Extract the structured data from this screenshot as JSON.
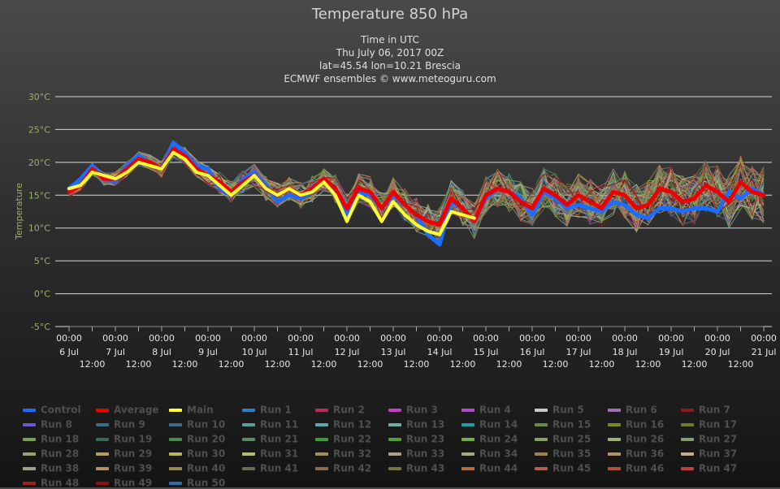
{
  "header": {
    "title": "Temperature 850 hPa",
    "line1": "Time in UTC",
    "line2": "Thu July 06, 2017 00Z",
    "line3": "lat=45.54 lon=10.21 Brescia",
    "line4": "ECMWF ensembles © www.meteoguru.com"
  },
  "colors": {
    "control": "#1a6dff",
    "average": "#ee0000",
    "main": "#ffff33",
    "grid": "#d8d8d8",
    "axis_label": "#9ab06a"
  },
  "chart_data": {
    "type": "line",
    "title": "Temperature 850 hPa",
    "ylabel": "Temperature",
    "ylim": [
      -5,
      30
    ],
    "yticks": [
      "-5°C",
      "0°C",
      "5°C",
      "10°C",
      "15°C",
      "20°C",
      "25°C",
      "30°C"
    ],
    "xlim_hours": [
      0,
      360
    ],
    "x_unit": "hours after Thu July 06, 2017 00Z",
    "x_ticks_top": [
      {
        "time": "00:00",
        "date": "6 Jul"
      },
      {
        "time": "00:00",
        "date": "7 Jul"
      },
      {
        "time": "00:00",
        "date": "8 Jul"
      },
      {
        "time": "00:00",
        "date": "9 Jul"
      },
      {
        "time": "00:00",
        "date": "10 Jul"
      },
      {
        "time": "00:00",
        "date": "11 Jul"
      },
      {
        "time": "00:00",
        "date": "12 Jul"
      },
      {
        "time": "00:00",
        "date": "13 Jul"
      },
      {
        "time": "00:00",
        "date": "14 Jul"
      },
      {
        "time": "00:00",
        "date": "15 Jul"
      },
      {
        "time": "00:00",
        "date": "16 Jul"
      },
      {
        "time": "00:00",
        "date": "17 Jul"
      },
      {
        "time": "00:00",
        "date": "18 Jul"
      },
      {
        "time": "00:00",
        "date": "19 Jul"
      },
      {
        "time": "00:00",
        "date": "20 Jul"
      },
      {
        "time": "00:00",
        "date": "21 Jul"
      }
    ],
    "x_ticks_mid": [
      "12:00",
      "12:00",
      "12:00",
      "12:00",
      "12:00",
      "12:00",
      "12:00",
      "12:00",
      "12:00",
      "12:00",
      "12:00",
      "12:00",
      "12:00",
      "12:00",
      "12:00"
    ],
    "series": [
      {
        "name": "Control",
        "x": [
          0,
          6,
          12,
          18,
          24,
          30,
          36,
          42,
          48,
          54,
          60,
          66,
          72,
          78,
          84,
          90,
          96,
          102,
          108,
          114,
          120,
          126,
          132,
          138,
          144,
          150,
          156,
          162,
          168,
          174,
          180,
          186,
          192,
          198,
          204,
          210,
          216,
          222,
          228,
          234,
          240,
          246,
          252,
          258,
          264,
          270,
          276,
          282,
          288,
          294,
          300,
          306,
          312,
          318,
          324,
          330,
          336,
          342,
          348,
          354,
          360
        ],
        "y": [
          16.0,
          17.5,
          19.5,
          17.5,
          17.0,
          19.5,
          21.0,
          20.0,
          19.0,
          23.0,
          21.5,
          19.5,
          19.0,
          16.0,
          15.0,
          17.5,
          18.5,
          16.5,
          14.0,
          15.0,
          14.5,
          15.5,
          17.5,
          15.5,
          12.0,
          15.5,
          15.0,
          13.0,
          15.0,
          13.5,
          12.0,
          9.0,
          7.5,
          14.0,
          13.0,
          11.0,
          14.5,
          16.0,
          15.5,
          14.5,
          12.0,
          15.5,
          14.5,
          13.0,
          13.5,
          13.0,
          12.5,
          14.0,
          13.5,
          12.0,
          11.5,
          13.0,
          13.0,
          12.5,
          13.0,
          13.0,
          12.5,
          15.5,
          14.5,
          16.0,
          15.0
        ]
      },
      {
        "name": "Average",
        "x": [
          0,
          6,
          12,
          18,
          24,
          30,
          36,
          42,
          48,
          54,
          60,
          66,
          72,
          78,
          84,
          90,
          96,
          102,
          108,
          114,
          120,
          126,
          132,
          138,
          144,
          150,
          156,
          162,
          168,
          174,
          180,
          186,
          192,
          198,
          204,
          210,
          216,
          222,
          228,
          234,
          240,
          246,
          252,
          258,
          264,
          270,
          276,
          282,
          288,
          294,
          300,
          306,
          312,
          318,
          324,
          330,
          336,
          342,
          348,
          354,
          360
        ],
        "y": [
          15.5,
          16.5,
          19.0,
          17.5,
          17.5,
          19.0,
          20.5,
          20.0,
          19.0,
          22.0,
          21.0,
          19.0,
          18.0,
          17.0,
          15.5,
          17.0,
          18.0,
          16.0,
          15.0,
          16.0,
          15.0,
          16.0,
          17.5,
          16.0,
          13.0,
          16.0,
          15.5,
          13.0,
          15.5,
          13.5,
          12.0,
          11.0,
          10.5,
          14.5,
          13.0,
          11.0,
          15.0,
          16.0,
          15.5,
          14.0,
          13.0,
          16.0,
          15.0,
          13.5,
          15.0,
          14.0,
          13.0,
          15.5,
          15.0,
          13.0,
          13.5,
          16.0,
          15.5,
          14.0,
          14.5,
          16.5,
          15.5,
          14.0,
          17.0,
          15.5,
          15.0
        ]
      },
      {
        "name": "Main",
        "x": [
          0,
          6,
          12,
          18,
          24,
          30,
          36,
          42,
          48,
          54,
          60,
          66,
          72,
          78,
          84,
          90,
          96,
          102,
          108,
          114,
          120,
          126,
          132,
          138,
          144,
          150,
          156,
          162,
          168,
          174,
          180,
          186,
          192,
          198,
          204,
          210,
          216,
          222,
          228,
          234,
          240,
          246,
          252,
          258,
          264,
          270,
          276,
          282,
          288,
          294,
          300,
          306,
          312,
          318,
          324,
          330,
          336,
          342,
          348,
          354,
          360
        ],
        "y": [
          16.0,
          16.5,
          18.5,
          18.0,
          17.5,
          18.5,
          20.0,
          19.5,
          19.0,
          21.5,
          20.5,
          18.5,
          18.0,
          16.5,
          15.0,
          16.5,
          18.0,
          16.0,
          15.0,
          16.0,
          15.0,
          15.5,
          17.0,
          15.0,
          11.0,
          15.0,
          14.0,
          11.0,
          14.0,
          12.0,
          10.5,
          9.5,
          9.0,
          12.5,
          12.0,
          11.5,
          null,
          null,
          null,
          null,
          null,
          null,
          null,
          null,
          null,
          null,
          null,
          null,
          null,
          null,
          null,
          null,
          null,
          null,
          null,
          null,
          null,
          null,
          null,
          null,
          null
        ]
      }
    ],
    "ensemble_runs": [
      "Run 1",
      "Run 2",
      "Run 3",
      "Run 4",
      "Run 5",
      "Run 6",
      "Run 7",
      "Run 8",
      "Run 9",
      "Run 10",
      "Run 11",
      "Run 12",
      "Run 13",
      "Run 14",
      "Run 15",
      "Run 16",
      "Run 17",
      "Run 18",
      "Run 19",
      "Run 20",
      "Run 21",
      "Run 22",
      "Run 23",
      "Run 24",
      "Run 25",
      "Run 26",
      "Run 27",
      "Run 28",
      "Run 29",
      "Run 30",
      "Run 31",
      "Run 32",
      "Run 33",
      "Run 34",
      "Run 35",
      "Run 36",
      "Run 37",
      "Run 38",
      "Run 39",
      "Run 40",
      "Run 41",
      "Run 42",
      "Run 43",
      "Run 44",
      "Run 45",
      "Run 46",
      "Run 47",
      "Run 48",
      "Run 49",
      "Run 50"
    ],
    "grid": true,
    "legend_position": "bottom"
  },
  "legend": {
    "items": [
      {
        "label": "Control",
        "color": "#1a6dff"
      },
      {
        "label": "Average",
        "color": "#ee0000"
      },
      {
        "label": "Main",
        "color": "#ffff33"
      },
      {
        "label": "Run 1",
        "color": "#2c7fb8"
      },
      {
        "label": "Run 2",
        "color": "#b03060"
      },
      {
        "label": "Run 3",
        "color": "#c040c0"
      },
      {
        "label": "Run 4",
        "color": "#b050c8"
      },
      {
        "label": "Run 5",
        "color": "#c8c8c8"
      },
      {
        "label": "Run 6",
        "color": "#a070b0"
      },
      {
        "label": "Run 7",
        "color": "#8b1a1a"
      },
      {
        "label": "Run 8",
        "color": "#6a5acd"
      },
      {
        "label": "Run 9",
        "color": "#3a6a8a"
      },
      {
        "label": "Run 10",
        "color": "#3a6a90"
      },
      {
        "label": "Run 11",
        "color": "#5aa0a0"
      },
      {
        "label": "Run 12",
        "color": "#60a8b8"
      },
      {
        "label": "Run 13",
        "color": "#70b0a0"
      },
      {
        "label": "Run 14",
        "color": "#20a0a0"
      },
      {
        "label": "Run 15",
        "color": "#6a8a4a"
      },
      {
        "label": "Run 16",
        "color": "#7a8a20"
      },
      {
        "label": "Run 17",
        "color": "#6a7a30"
      },
      {
        "label": "Run 18",
        "color": "#7aa050"
      },
      {
        "label": "Run 19",
        "color": "#3a6a5a"
      },
      {
        "label": "Run 20",
        "color": "#4a8a4a"
      },
      {
        "label": "Run 21",
        "color": "#5a8a6a"
      },
      {
        "label": "Run 22",
        "color": "#3a9a3a"
      },
      {
        "label": "Run 23",
        "color": "#50a030"
      },
      {
        "label": "Run 24",
        "color": "#70b040"
      },
      {
        "label": "Run 25",
        "color": "#8aa060"
      },
      {
        "label": "Run 26",
        "color": "#a0b070"
      },
      {
        "label": "Run 27",
        "color": "#8a9a70"
      },
      {
        "label": "Run 28",
        "color": "#a0a070"
      },
      {
        "label": "Run 29",
        "color": "#b0a060"
      },
      {
        "label": "Run 30",
        "color": "#c0b060"
      },
      {
        "label": "Run 31",
        "color": "#b0c070"
      },
      {
        "label": "Run 32",
        "color": "#a09060"
      },
      {
        "label": "Run 33",
        "color": "#b0a080"
      },
      {
        "label": "Run 34",
        "color": "#a0b080"
      },
      {
        "label": "Run 35",
        "color": "#a08050"
      },
      {
        "label": "Run 36",
        "color": "#b09060"
      },
      {
        "label": "Run 37",
        "color": "#c0b090"
      },
      {
        "label": "Run 38",
        "color": "#a0a090"
      },
      {
        "label": "Run 39",
        "color": "#b09070"
      },
      {
        "label": "Run 40",
        "color": "#9a8a50"
      },
      {
        "label": "Run 41",
        "color": "#6a6a5a"
      },
      {
        "label": "Run 42",
        "color": "#8a7050"
      },
      {
        "label": "Run 43",
        "color": "#7a7040"
      },
      {
        "label": "Run 44",
        "color": "#b07040"
      },
      {
        "label": "Run 45",
        "color": "#b06050"
      },
      {
        "label": "Run 46",
        "color": "#b05040"
      },
      {
        "label": "Run 47",
        "color": "#c04040"
      },
      {
        "label": "Run 48",
        "color": "#a02020"
      },
      {
        "label": "Run 49",
        "color": "#901010"
      },
      {
        "label": "Run 50",
        "color": "#2a70b0"
      }
    ]
  }
}
